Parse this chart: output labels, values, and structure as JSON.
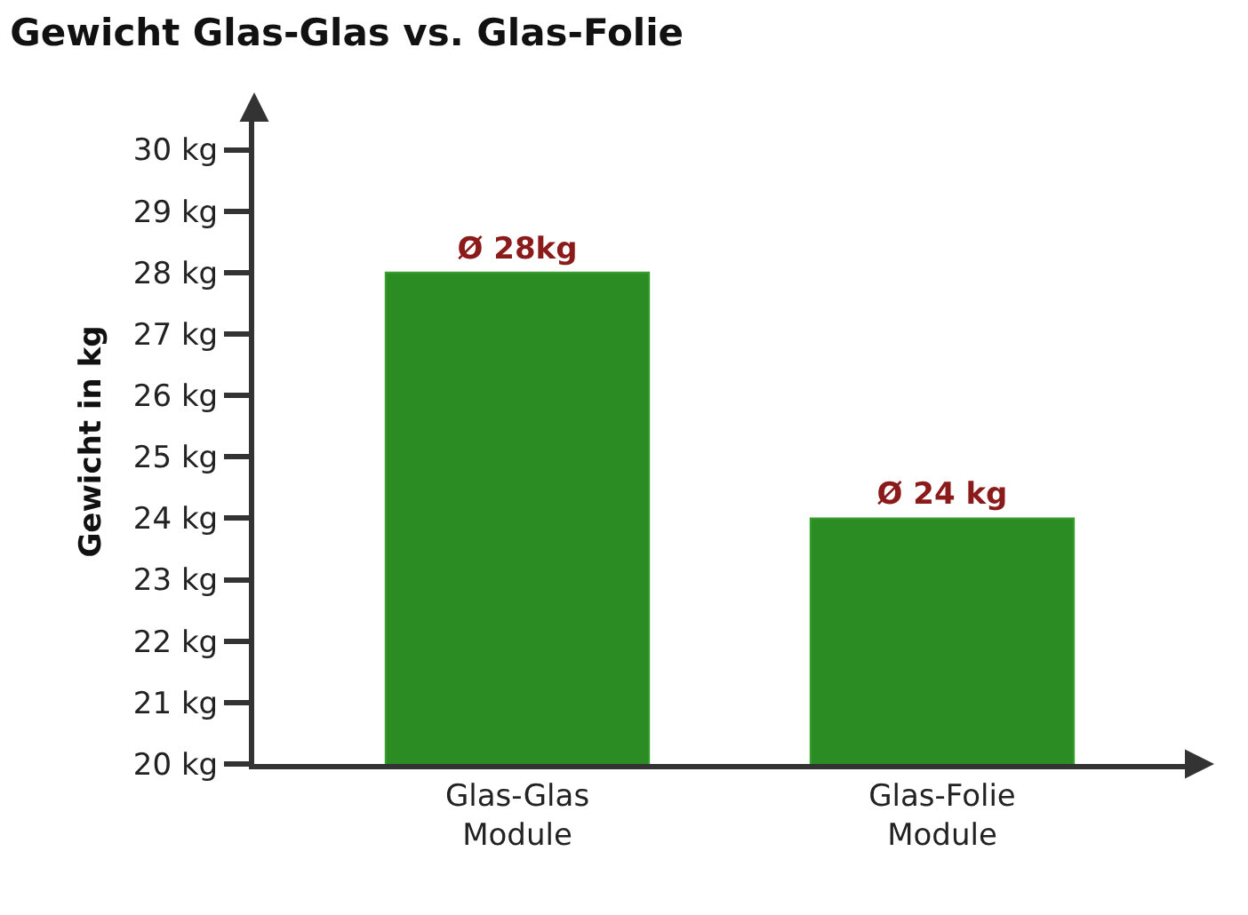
{
  "chart_data": {
    "type": "bar",
    "title": "Gewicht Glas-Glas vs. Glas-Folie",
    "ylabel": "Gewicht in kg",
    "categories": [
      "Glas-Glas\nModule",
      "Glas-Folie\nModule"
    ],
    "values": [
      28,
      24
    ],
    "color": "#2a8c22",
    "value_labels": [
      "Ø 28kg",
      "Ø 24 kg"
    ],
    "ylim": [
      20,
      30.5
    ],
    "yticks": [
      {
        "value": 20,
        "label": "20 kg"
      },
      {
        "value": 21,
        "label": "21 kg"
      },
      {
        "value": 22,
        "label": "22 kg"
      },
      {
        "value": 23,
        "label": "23 kg"
      },
      {
        "value": 24,
        "label": "24 kg"
      },
      {
        "value": 25,
        "label": "25 kg"
      },
      {
        "value": 26,
        "label": "26 kg"
      },
      {
        "value": 27,
        "label": "27 kg"
      },
      {
        "value": 28,
        "label": "28 kg"
      },
      {
        "value": 29,
        "label": "29 kg"
      },
      {
        "value": 30,
        "label": "30 kg"
      }
    ],
    "grid": false,
    "legend": false
  }
}
